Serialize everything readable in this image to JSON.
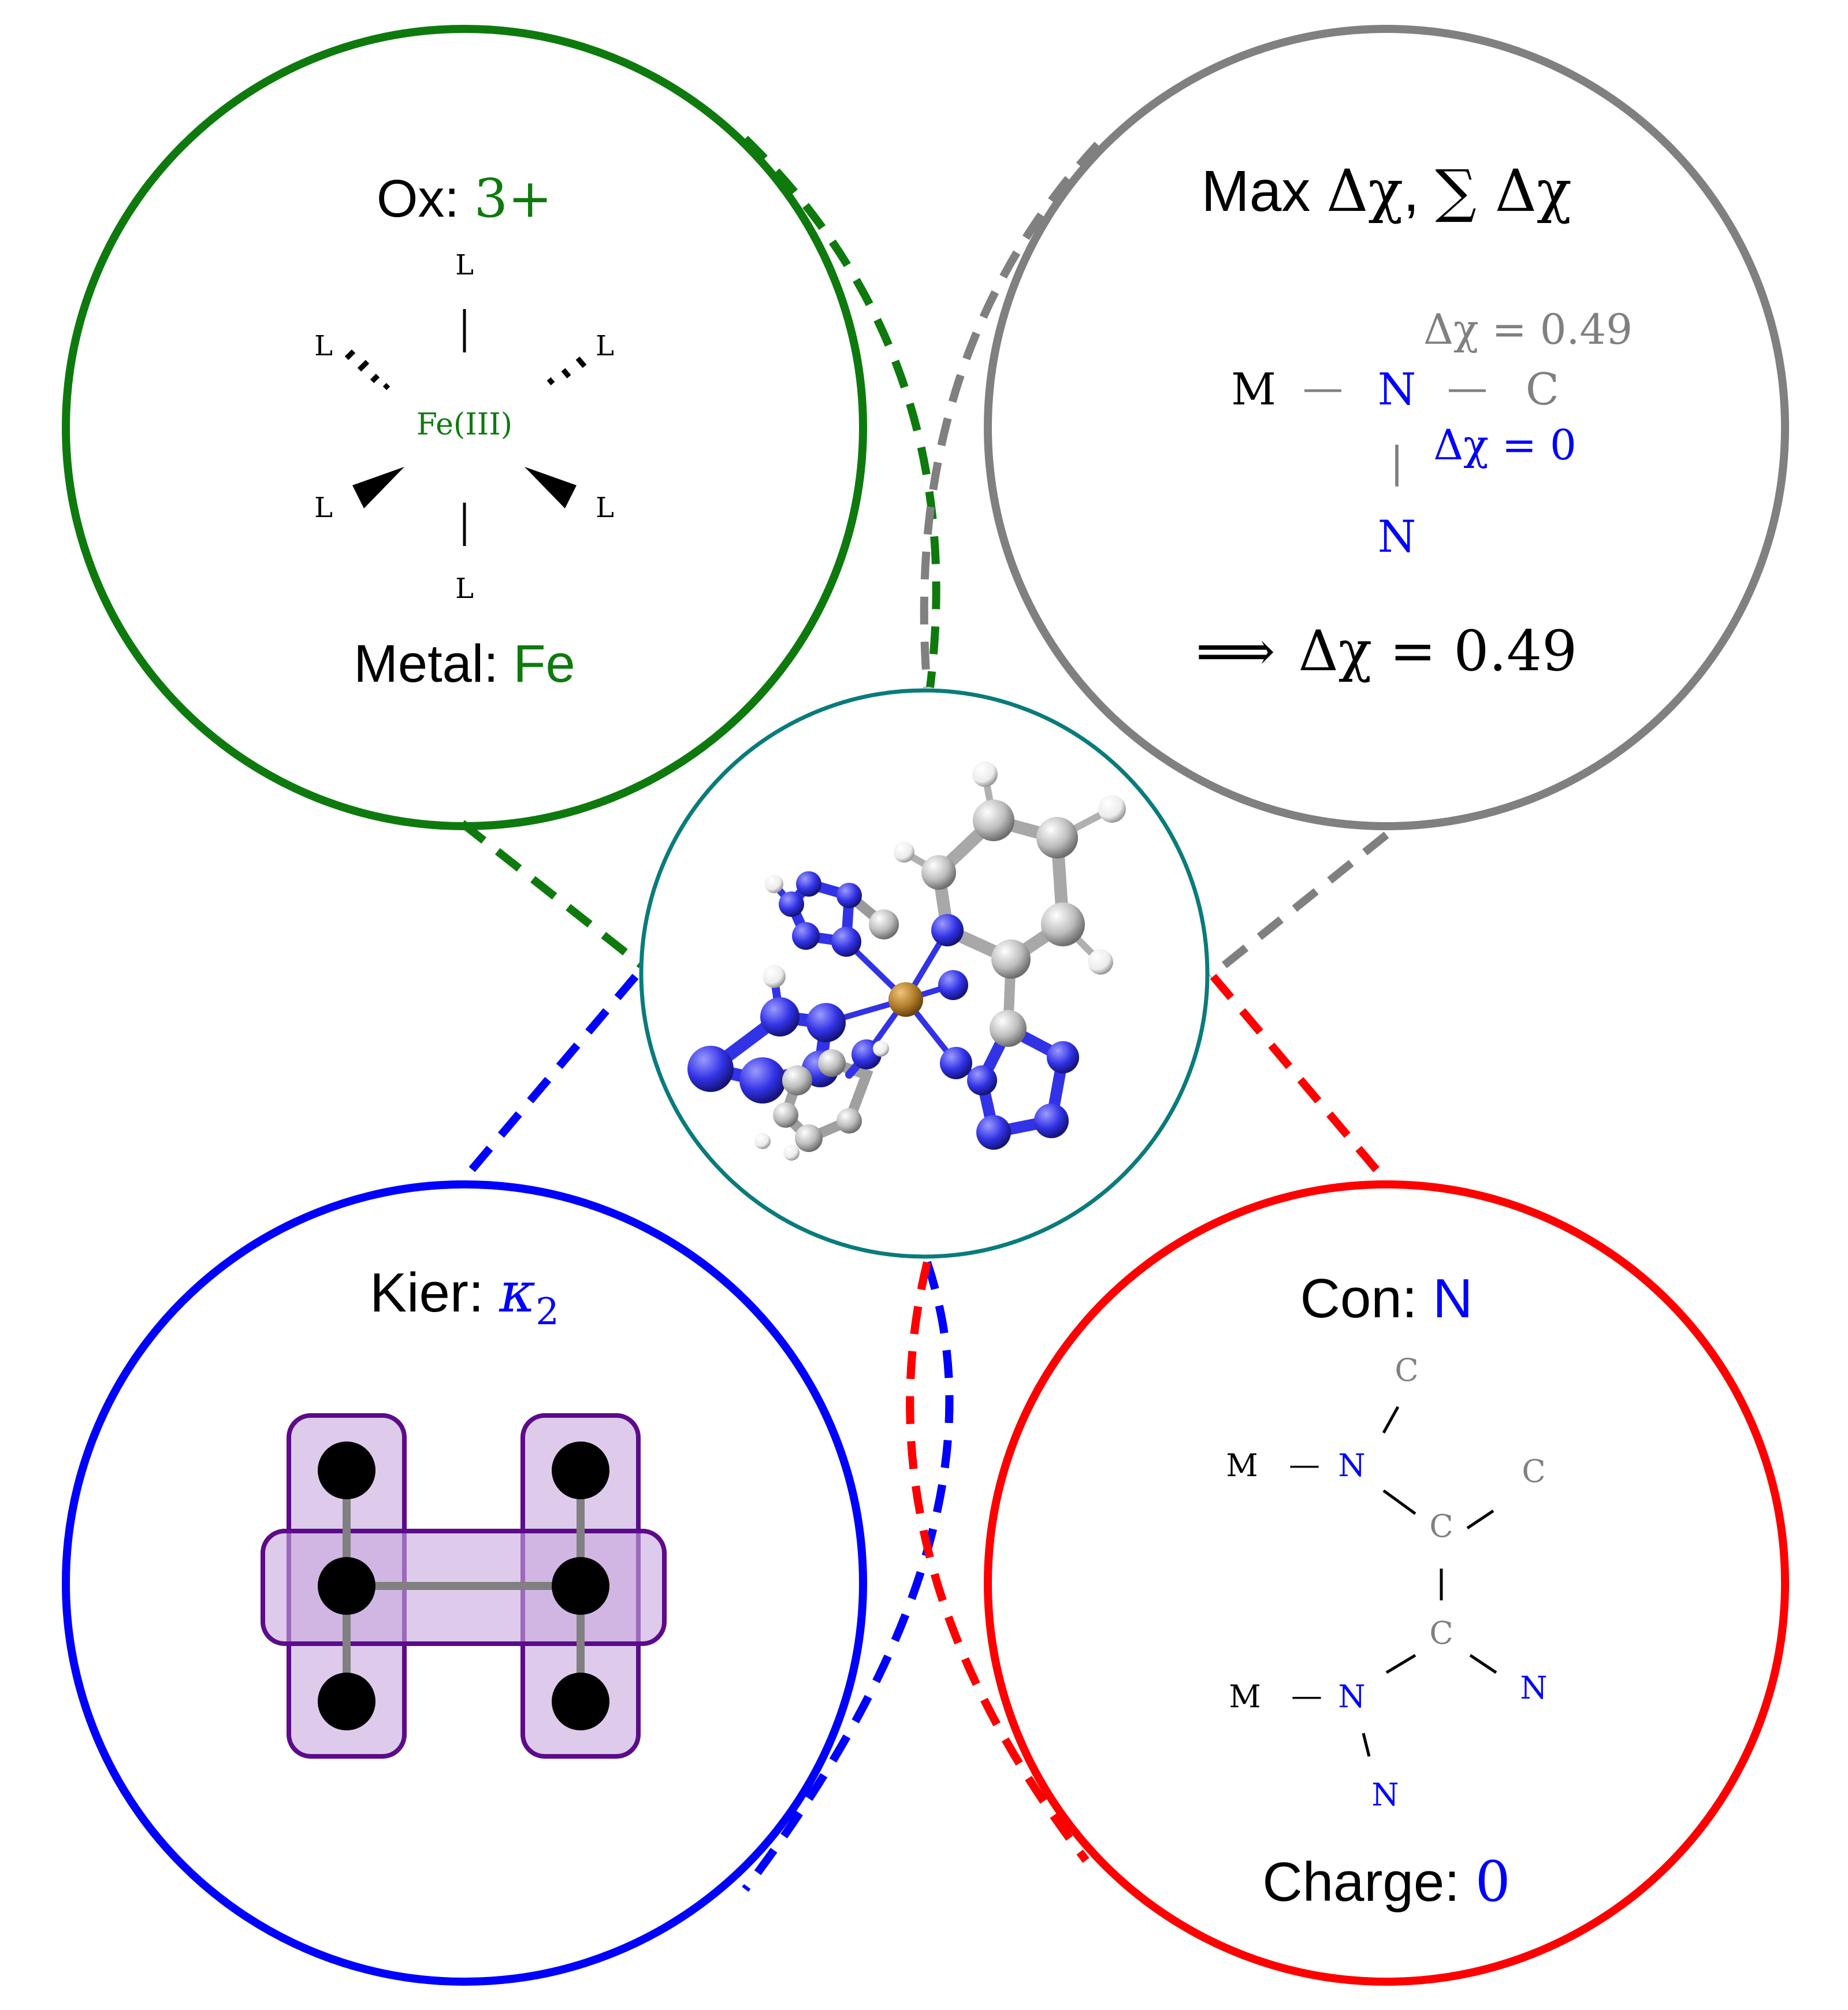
{
  "colors": {
    "green": "#0e7a0e",
    "gray": "#808080",
    "blue": "#0000ff",
    "red": "#ff0000",
    "teal": "#0a7b7b",
    "purple": "#5c0b8a",
    "purple_fill": "#c8a8e0",
    "black": "#000000",
    "iron": "#b07d2a",
    "nitrogen": "#3232e6",
    "carbon": "#bdbdbd",
    "hydrogen": "#f2f2f2"
  },
  "oxidation": {
    "label": "Ox: ",
    "value": "3+",
    "center": "Fe(III)",
    "ligand": "L",
    "metal_label": "Metal: ",
    "metal_value": "Fe"
  },
  "electronegativity": {
    "title_prefix": "Max ",
    "title_dchi": "Δχ",
    "title_sep": ", ",
    "title_sum": "∑ Δχ",
    "metal": "M",
    "dash1": "—",
    "nitrogen": "N",
    "dash2": "—",
    "carbon": "C",
    "dchi_top": "Δχ = 0.49",
    "dchi_blue": "Δχ = 0",
    "vbar": "|",
    "nitrogen_bottom": "N",
    "implies": "⟹",
    "result": "Δχ = 0.49"
  },
  "kier": {
    "label": "Kier: ",
    "kappa": "κ",
    "subscript": "2"
  },
  "connectivity": {
    "label": "Con: ",
    "value": "N",
    "m1": "M",
    "dash_m1": "—",
    "n1": "N",
    "c_top": "C",
    "c_mid1": "C",
    "c_right": "C",
    "c_mid2": "C",
    "n_right": "N",
    "m2": "M",
    "dash_m2": "—",
    "n2": "N",
    "n_bottom": "N",
    "charge_label": "Charge: ",
    "charge_value": "0"
  },
  "icons": [
    "molecule-icon",
    "octahedral-geometry-icon",
    "graph-icon"
  ]
}
